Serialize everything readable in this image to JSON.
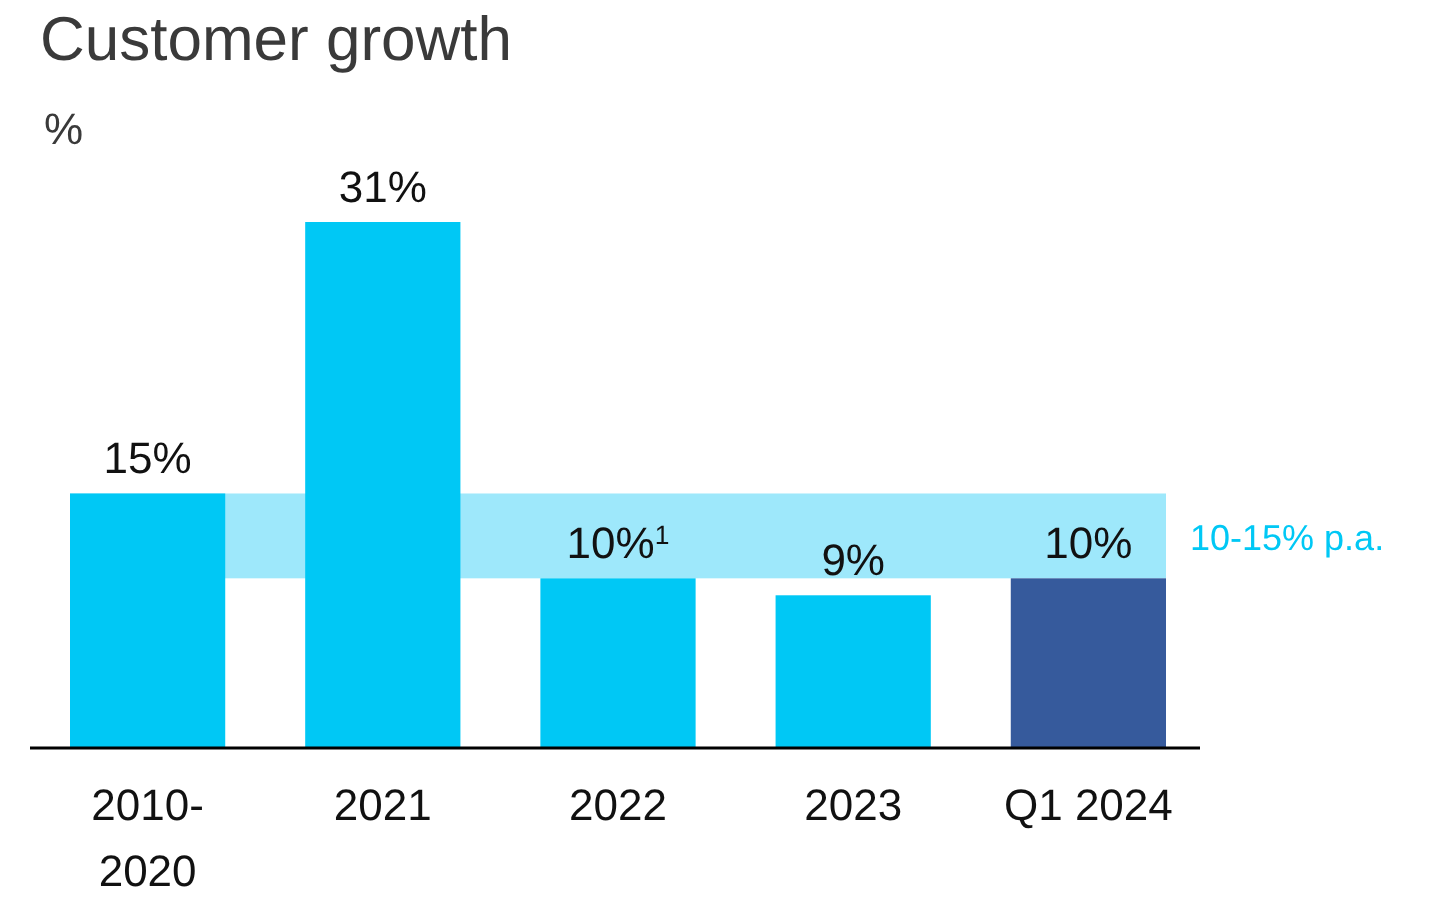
{
  "chart_data": {
    "type": "bar",
    "title": "Customer growth",
    "ylabel": "%",
    "categories": [
      "2010-2020",
      "2021",
      "2022",
      "2023",
      "Q1 2024"
    ],
    "values": [
      15,
      31,
      10,
      9,
      10
    ],
    "colors": [
      "#00c8f5",
      "#00c8f5",
      "#00c8f5",
      "#00c8f5",
      "#365a9c"
    ],
    "value_labels": [
      "15%",
      "31%",
      "10%$^{1}$",
      "9%",
      "10%"
    ],
    "bands": [
      {
        "axis": "y",
        "from": 10,
        "to": 15,
        "label": "10-15% p.a.",
        "color": "#9ee8fb"
      }
    ]
  }
}
